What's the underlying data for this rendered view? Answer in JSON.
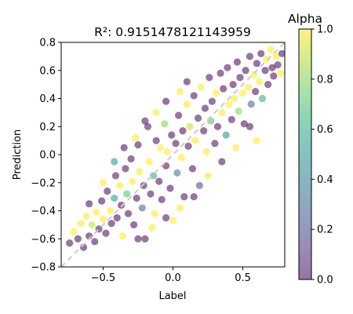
{
  "chart_data": {
    "type": "scatter",
    "title": "R²: 0.9151478121143959",
    "xlabel": "Label",
    "ylabel": "Prediction",
    "xlim": [
      -0.8,
      0.8
    ],
    "ylim": [
      -0.8,
      0.8
    ],
    "x_ticks": [
      -0.5,
      0.0,
      0.5
    ],
    "x_tick_labels": [
      "−0.5",
      "0.0",
      "0.5"
    ],
    "y_ticks": [
      -0.8,
      -0.6,
      -0.4,
      -0.2,
      0.0,
      0.2,
      0.4,
      0.6,
      0.8
    ],
    "y_tick_labels": [
      "−0.8",
      "−0.6",
      "−0.4",
      "−0.2",
      "0.0",
      "0.2",
      "0.4",
      "0.6",
      "0.8"
    ],
    "reference_line": {
      "style": "dashed",
      "color": "#cccccc",
      "from": [
        -0.8,
        -0.8
      ],
      "to": [
        0.8,
        0.8
      ]
    },
    "grid": false,
    "colormap": "viridis",
    "marker_alpha": 0.55,
    "colorbar": {
      "title": "Alpha",
      "range": [
        0.0,
        1.0
      ],
      "ticks": [
        0.0,
        0.2,
        0.4,
        0.6,
        0.8,
        1.0
      ],
      "tick_labels": [
        "0.0",
        "0.2",
        "0.4",
        "0.6",
        "0.8",
        "1.0"
      ]
    },
    "points": [
      [
        -0.74,
        -0.63,
        0.0
      ],
      [
        -0.71,
        -0.55,
        1.0
      ],
      [
        -0.68,
        -0.6,
        0.0
      ],
      [
        -0.66,
        -0.49,
        1.0
      ],
      [
        -0.64,
        -0.66,
        0.0
      ],
      [
        -0.62,
        -0.44,
        1.0
      ],
      [
        -0.6,
        -0.58,
        0.0
      ],
      [
        -0.58,
        -0.5,
        0.9
      ],
      [
        -0.56,
        -0.62,
        0.0
      ],
      [
        -0.55,
        -0.41,
        1.0
      ],
      [
        -0.53,
        -0.53,
        0.0
      ],
      [
        -0.51,
        -0.33,
        0.0
      ],
      [
        -0.5,
        -0.46,
        1.0
      ],
      [
        -0.48,
        -0.56,
        0.0
      ],
      [
        -0.47,
        -0.26,
        0.0
      ],
      [
        -0.45,
        -0.4,
        1.0
      ],
      [
        -0.44,
        -0.49,
        0.0
      ],
      [
        -0.42,
        -0.31,
        0.5
      ],
      [
        -0.41,
        -0.15,
        0.0
      ],
      [
        -0.4,
        -0.45,
        0.0
      ],
      [
        -0.38,
        -0.22,
        1.0
      ],
      [
        -0.37,
        -0.36,
        0.0
      ],
      [
        -0.36,
        -0.58,
        1.0
      ],
      [
        -0.34,
        -0.1,
        0.0
      ],
      [
        -0.33,
        -0.28,
        0.7
      ],
      [
        -0.32,
        -0.42,
        0.0
      ],
      [
        -0.3,
        -0.03,
        0.0
      ],
      [
        -0.29,
        -0.19,
        1.0
      ],
      [
        -0.28,
        -0.5,
        0.0
      ],
      [
        -0.26,
        -0.31,
        0.0
      ],
      [
        -0.25,
        0.07,
        0.0
      ],
      [
        -0.24,
        -0.12,
        1.0
      ],
      [
        -0.22,
        -0.38,
        0.3
      ],
      [
        -0.21,
        -0.22,
        0.0
      ],
      [
        -0.2,
        -0.6,
        0.0
      ],
      [
        -0.18,
        0.2,
        0.0
      ],
      [
        -0.17,
        -0.05,
        1.0
      ],
      [
        -0.16,
        -0.28,
        0.0
      ],
      [
        -0.14,
        -0.15,
        0.6
      ],
      [
        -0.13,
        -0.42,
        1.0
      ],
      [
        -0.12,
        0.1,
        0.0
      ],
      [
        -0.1,
        -0.19,
        0.0
      ],
      [
        -0.09,
        0.05,
        1.0
      ],
      [
        -0.08,
        -0.32,
        0.0
      ],
      [
        -0.06,
        0.22,
        0.8
      ],
      [
        -0.05,
        -0.08,
        0.0
      ],
      [
        -0.04,
        0.02,
        1.0
      ],
      [
        -0.02,
        -0.24,
        0.0
      ],
      [
        -0.01,
        0.14,
        0.0
      ],
      [
        0.0,
        -0.47,
        1.0
      ],
      [
        0.02,
        0.08,
        0.0
      ],
      [
        0.03,
        -0.13,
        0.4
      ],
      [
        0.04,
        0.28,
        0.0
      ],
      [
        0.06,
        -0.02,
        1.0
      ],
      [
        0.07,
        0.17,
        0.0
      ],
      [
        0.08,
        -0.3,
        0.0
      ],
      [
        0.1,
        0.36,
        1.0
      ],
      [
        0.11,
        0.06,
        0.0
      ],
      [
        0.12,
        0.2,
        0.9
      ],
      [
        0.14,
        -0.1,
        0.0
      ],
      [
        0.15,
        0.42,
        0.0
      ],
      [
        0.16,
        0.1,
        1.0
      ],
      [
        0.18,
        0.26,
        0.0
      ],
      [
        0.19,
        -0.22,
        0.2
      ],
      [
        0.2,
        0.48,
        1.0
      ],
      [
        0.22,
        0.17,
        0.0
      ],
      [
        0.23,
        0.33,
        0.0
      ],
      [
        0.24,
        0.02,
        1.0
      ],
      [
        0.26,
        0.55,
        0.0
      ],
      [
        0.27,
        0.24,
        0.7
      ],
      [
        0.28,
        0.38,
        0.0
      ],
      [
        0.3,
        0.08,
        0.0
      ],
      [
        0.31,
        0.44,
        1.0
      ],
      [
        0.32,
        0.2,
        0.0
      ],
      [
        0.34,
        0.58,
        0.0
      ],
      [
        0.35,
        0.3,
        1.0
      ],
      [
        0.36,
        0.47,
        0.0
      ],
      [
        0.38,
        0.14,
        0.5
      ],
      [
        0.39,
        0.62,
        0.0
      ],
      [
        0.4,
        0.36,
        1.0
      ],
      [
        0.42,
        0.25,
        0.0
      ],
      [
        0.43,
        0.5,
        0.0
      ],
      [
        0.44,
        0.4,
        1.0
      ],
      [
        0.46,
        0.66,
        0.0
      ],
      [
        0.47,
        0.31,
        0.8
      ],
      [
        0.48,
        0.55,
        0.0
      ],
      [
        0.5,
        0.44,
        1.0
      ],
      [
        0.51,
        0.22,
        0.0
      ],
      [
        0.52,
        0.6,
        0.0
      ],
      [
        0.54,
        0.48,
        1.0
      ],
      [
        0.55,
        0.7,
        0.0
      ],
      [
        0.56,
        0.36,
        0.3
      ],
      [
        0.58,
        0.57,
        1.0
      ],
      [
        0.59,
        0.45,
        0.0
      ],
      [
        0.6,
        0.65,
        0.0
      ],
      [
        0.62,
        0.52,
        1.0
      ],
      [
        0.63,
        0.72,
        0.0
      ],
      [
        0.64,
        0.4,
        0.6
      ],
      [
        0.66,
        0.6,
        0.0
      ],
      [
        0.67,
        0.68,
        1.0
      ],
      [
        0.68,
        0.5,
        0.0
      ],
      [
        0.7,
        0.75,
        1.0
      ],
      [
        0.71,
        0.62,
        0.0
      ],
      [
        0.72,
        0.56,
        0.0
      ],
      [
        0.74,
        0.7,
        1.0
      ],
      [
        0.75,
        0.64,
        0.0
      ],
      [
        0.77,
        0.58,
        1.0
      ],
      [
        0.78,
        0.72,
        0.0
      ],
      [
        -0.6,
        -0.35,
        0.0
      ],
      [
        -0.5,
        -0.2,
        1.0
      ],
      [
        -0.42,
        -0.05,
        0.5
      ],
      [
        -0.35,
        0.05,
        0.0
      ],
      [
        -0.27,
        0.12,
        1.0
      ],
      [
        -0.2,
        0.24,
        0.0
      ],
      [
        -0.12,
        0.3,
        1.0
      ],
      [
        -0.05,
        0.38,
        0.0
      ],
      [
        0.05,
        0.45,
        1.0
      ],
      [
        0.1,
        0.52,
        0.0
      ],
      [
        0.6,
        0.1,
        1.0
      ],
      [
        0.55,
        0.2,
        0.0
      ],
      [
        0.45,
        0.05,
        1.0
      ],
      [
        0.35,
        -0.05,
        0.0
      ],
      [
        0.25,
        -0.15,
        1.0
      ],
      [
        0.15,
        -0.3,
        0.0
      ],
      [
        0.05,
        -0.38,
        1.0
      ],
      [
        -0.05,
        -0.45,
        0.0
      ],
      [
        -0.15,
        -0.52,
        1.0
      ],
      [
        -0.25,
        -0.6,
        0.0
      ]
    ]
  }
}
